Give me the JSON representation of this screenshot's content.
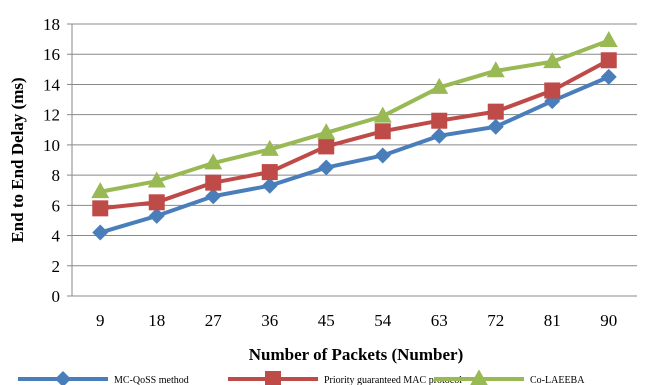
{
  "chart_data": {
    "type": "line",
    "title": "",
    "xlabel": "Number of Packets (Number)",
    "ylabel": "End to End Delay (ms)",
    "ylim": [
      0,
      18
    ],
    "yticks": [
      0,
      2,
      4,
      6,
      8,
      10,
      12,
      14,
      16,
      18
    ],
    "grid": "horizontal",
    "legend_position": "bottom",
    "categories": [
      "9",
      "18",
      "27",
      "36",
      "45",
      "54",
      "63",
      "72",
      "81",
      "90"
    ],
    "series": [
      {
        "name": "MC-QoSS method",
        "marker": "diamond",
        "color": "#4A7EBB",
        "values": [
          4.2,
          5.3,
          6.6,
          7.3,
          8.5,
          9.3,
          10.6,
          11.2,
          12.9,
          14.5
        ]
      },
      {
        "name": "Priority guaranteed MAC protocol",
        "marker": "square",
        "color": "#BE4B48",
        "values": [
          5.8,
          6.2,
          7.5,
          8.2,
          9.9,
          10.9,
          11.6,
          12.2,
          13.6,
          15.6
        ]
      },
      {
        "name": "Co-LAEEBA",
        "marker": "triangle",
        "color": "#98B954",
        "values": [
          6.9,
          7.6,
          8.8,
          9.7,
          10.8,
          11.9,
          13.8,
          14.9,
          15.5,
          16.9
        ]
      }
    ]
  }
}
